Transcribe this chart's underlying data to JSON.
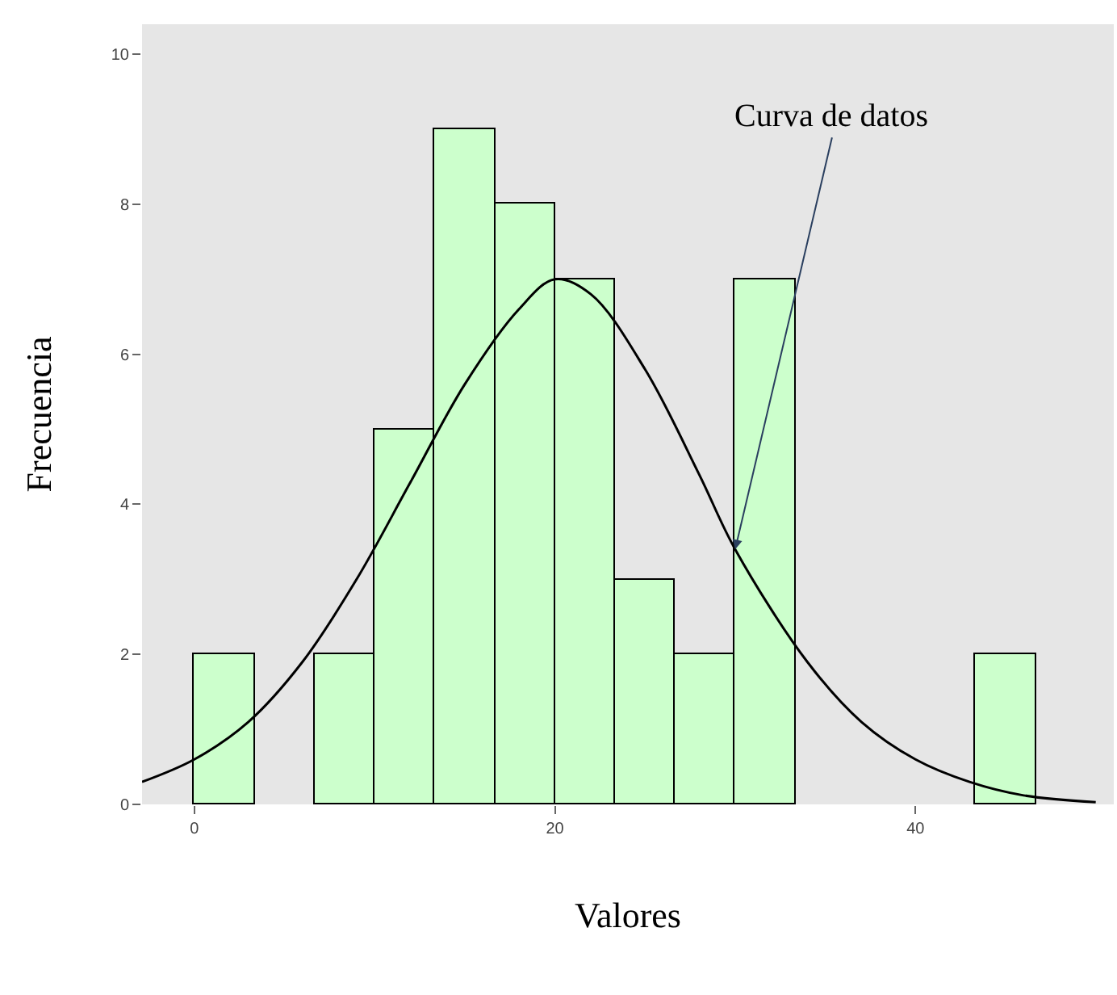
{
  "chart_data": {
    "type": "histogram",
    "xlabel": "Valores",
    "ylabel": "Frecuencia",
    "bins": [
      0,
      3.33,
      6.67,
      10,
      13.33,
      16.67,
      20,
      23.33,
      26.67,
      30,
      33.33,
      36.67,
      40,
      43.33,
      46.67
    ],
    "values": [
      2,
      0,
      2,
      5,
      9,
      8,
      7,
      3,
      2,
      7,
      0,
      0,
      0,
      2
    ],
    "color": "#ccffcc",
    "series": [
      {
        "type": "line",
        "color": "#000000",
        "x": [
          -2.9,
          0,
          3,
          6,
          9,
          12,
          15,
          18,
          20,
          22,
          25,
          28,
          30,
          34,
          37,
          40,
          43,
          46,
          50
        ],
        "values": [
          0.3,
          0.6,
          1.1,
          1.9,
          3.0,
          4.3,
          5.6,
          6.6,
          7.0,
          6.8,
          5.8,
          4.4,
          3.4,
          1.9,
          1.1,
          0.6,
          0.3,
          0.12,
          0.03
        ]
      }
    ],
    "xlim": [
      -2.9,
      51
    ],
    "xticks": [
      0,
      20,
      40
    ],
    "ylim": [
      0,
      10.4
    ],
    "yticks": [
      0,
      2,
      4,
      6,
      8,
      10
    ],
    "grid": false,
    "annotations": [
      {
        "text": "Curva de datos",
        "x": 30,
        "y": 3.4
      }
    ]
  }
}
